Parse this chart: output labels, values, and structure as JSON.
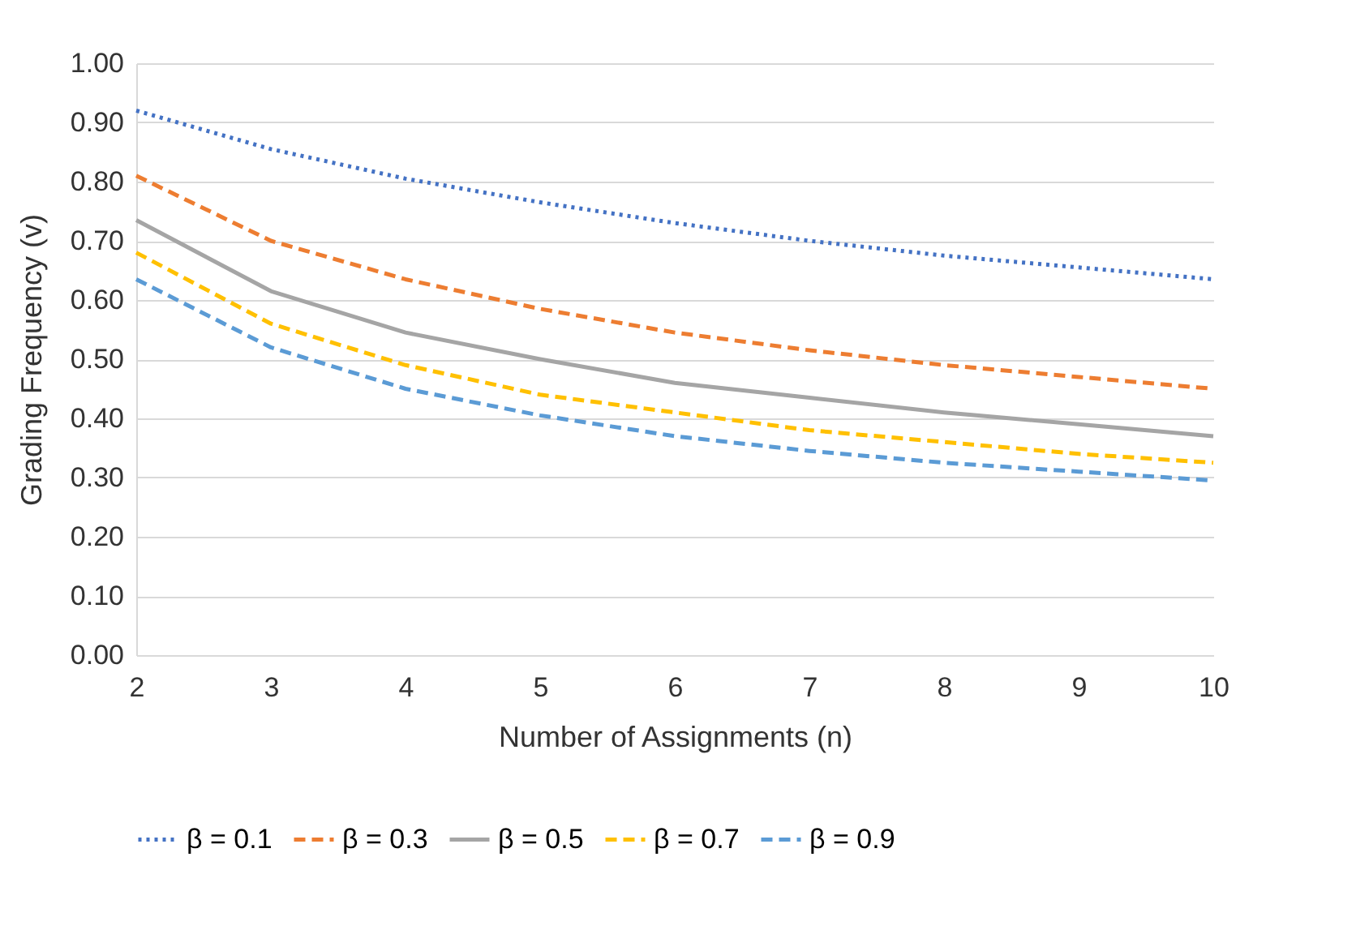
{
  "chart_data": {
    "type": "line",
    "xlabel": "Number of Assignments (n)",
    "ylabel": "Grading Frequency (v)",
    "x": [
      2,
      3,
      4,
      5,
      6,
      7,
      8,
      9,
      10
    ],
    "series": [
      {
        "name": "β = 0.1",
        "color": "#4472c4",
        "line_style": "dotted",
        "values": [
          0.92,
          0.855,
          0.805,
          0.765,
          0.73,
          0.7,
          0.675,
          0.655,
          0.635
        ]
      },
      {
        "name": "β = 0.3",
        "color": "#ed7d31",
        "line_style": "dashed",
        "values": [
          0.81,
          0.7,
          0.635,
          0.585,
          0.545,
          0.515,
          0.49,
          0.47,
          0.45
        ]
      },
      {
        "name": "β = 0.5",
        "color": "#a5a5a5",
        "line_style": "solid",
        "values": [
          0.735,
          0.615,
          0.545,
          0.5,
          0.46,
          0.435,
          0.41,
          0.39,
          0.37
        ]
      },
      {
        "name": "β = 0.7",
        "color": "#ffc000",
        "line_style": "dashed",
        "values": [
          0.68,
          0.56,
          0.49,
          0.44,
          0.41,
          0.38,
          0.36,
          0.34,
          0.325
        ]
      },
      {
        "name": "β = 0.9",
        "color": "#5b9bd5",
        "line_style": "dashed",
        "values": [
          0.635,
          0.52,
          0.45,
          0.405,
          0.37,
          0.345,
          0.325,
          0.31,
          0.295
        ]
      }
    ],
    "xlim": [
      2,
      10
    ],
    "xticks": [
      2,
      3,
      4,
      5,
      6,
      7,
      8,
      9,
      10
    ],
    "ylim": [
      0,
      1
    ],
    "yticks": [
      {
        "value": 0,
        "label": "0.00"
      },
      {
        "value": 0.1,
        "label": "0.10"
      },
      {
        "value": 0.2,
        "label": "0.20"
      },
      {
        "value": 0.3,
        "label": "0.30"
      },
      {
        "value": 0.4,
        "label": "0.40"
      },
      {
        "value": 0.5,
        "label": "0.50"
      },
      {
        "value": 0.6,
        "label": "0.60"
      },
      {
        "value": 0.7,
        "label": "0.70"
      },
      {
        "value": 0.8,
        "label": "0.80"
      },
      {
        "value": 0.9,
        "label": "0.90"
      },
      {
        "value": 1,
        "label": "1.00"
      }
    ],
    "grid": "y",
    "legend": "bottom",
    "marker": "none"
  }
}
